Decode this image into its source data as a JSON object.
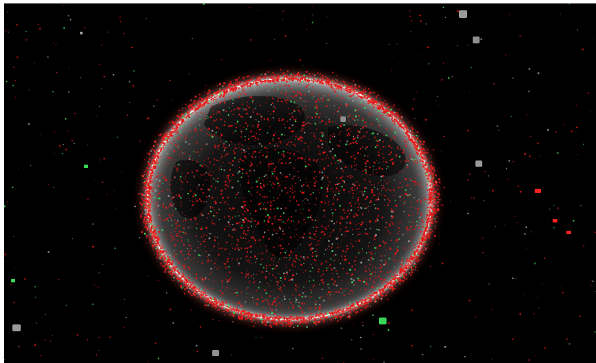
{
  "image": {
    "subject": "space-debris-around-earth",
    "colors": {
      "space": "#000000",
      "debris": "#e01818",
      "debris_light": "#ff3a2a",
      "satellite": "#3ad65a",
      "inactive": "#9a9a9a",
      "limb_glow": "#ffffff",
      "earth_shade": "#6e6e6e"
    }
  }
}
